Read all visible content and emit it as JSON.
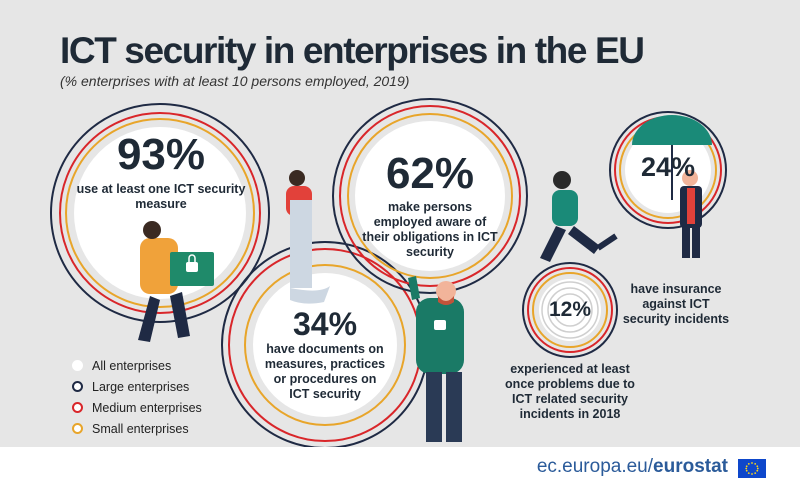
{
  "title": "ICT security in enterprises in the EU",
  "subtitle": "(% enterprises with at least 10 persons employed, 2019)",
  "chart_data": {
    "type": "bubble-infographic",
    "unit": "%",
    "items": [
      {
        "value": 93,
        "label": "93%",
        "description": "use at least one ICT security measure"
      },
      {
        "value": 62,
        "label": "62%",
        "description": "make persons employed aware of their obligations in ICT security"
      },
      {
        "value": 24,
        "label": "24%",
        "description": "have insurance against ICT security incidents"
      },
      {
        "value": 34,
        "label": "34%",
        "description": "have documents on measures, practices or procedures on ICT security"
      },
      {
        "value": 12,
        "label": "12%",
        "description": "experienced at least once problems due to ICT related security incidents in 2018"
      }
    ],
    "legend": [
      {
        "name": "All enterprises",
        "color": "#ffffff"
      },
      {
        "name": "Large enterprises",
        "color": "#1f2a44"
      },
      {
        "name": "Medium enterprises",
        "color": "#d9262a"
      },
      {
        "name": "Small enterprises",
        "color": "#e8a52a"
      }
    ]
  },
  "texts": {
    "d93_1": "use at least one ICT security",
    "d93_2": "measure",
    "d62_1": "make persons",
    "d62_2": "employed aware of",
    "d62_3": "their obligations in ICT",
    "d62_4": "security",
    "d24_1": "have insurance",
    "d24_2": "against ICT",
    "d24_3": "security incidents",
    "d34_1": "have documents on",
    "d34_2": "measures, practices",
    "d34_3": "or procedures on",
    "d34_4": "ICT security",
    "d12_1": "experienced at least",
    "d12_2": "once problems due to",
    "d12_3": "ICT related security",
    "d12_4": "incidents in 2018"
  },
  "footer": {
    "site": "ec.europa.eu/",
    "brand": "eurostat"
  }
}
